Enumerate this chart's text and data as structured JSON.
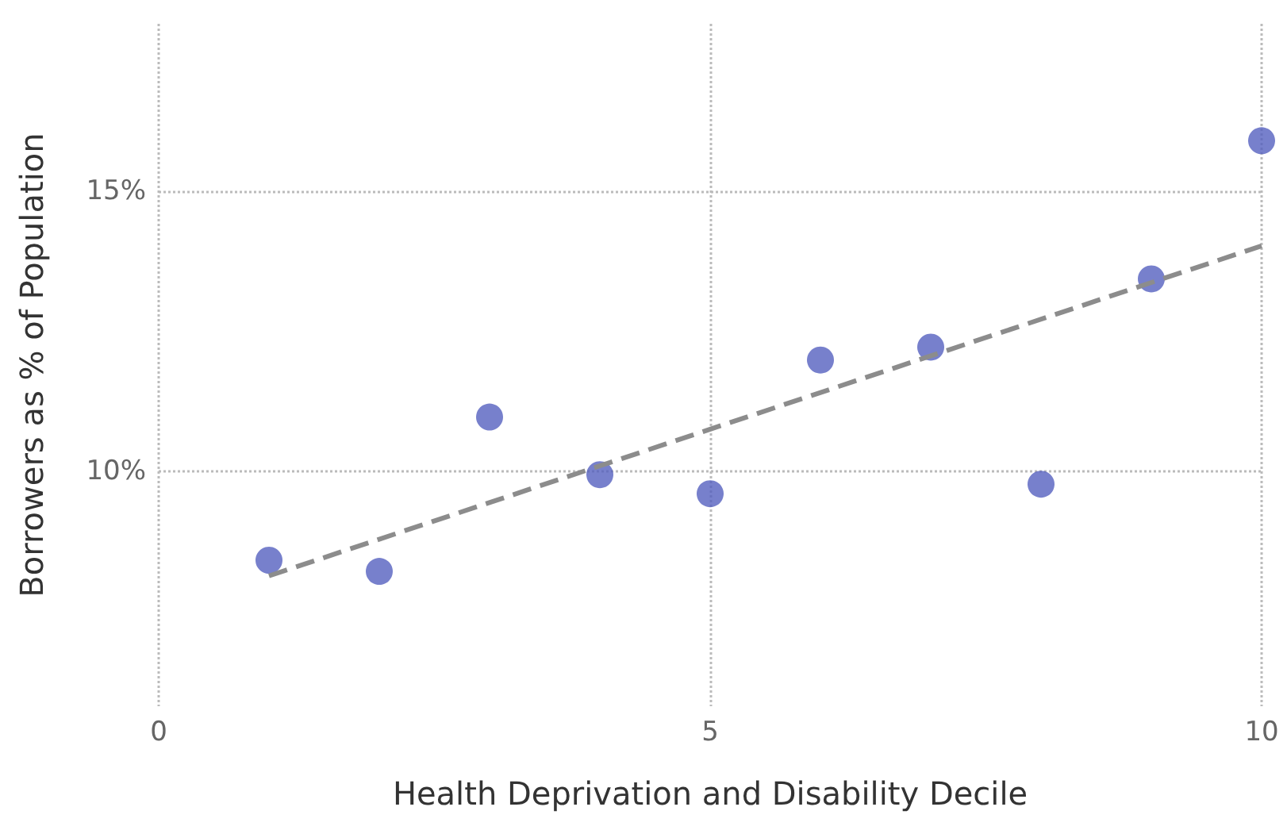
{
  "chart_data": {
    "type": "scatter",
    "xlabel": "Health Deprivation and Disability Decile",
    "ylabel": "Borrowers as % of Population",
    "xlim": [
      0,
      10
    ],
    "xticks": [
      0,
      5,
      10
    ],
    "ylim": [
      5.8,
      18
    ],
    "yticks": [
      {
        "value": 10,
        "label": "10%"
      },
      {
        "value": 15,
        "label": "15%"
      }
    ],
    "grid": true,
    "series": [
      {
        "color": "#5560bf",
        "marker": "circle",
        "x": [
          1,
          2,
          3,
          4,
          5,
          6,
          7,
          8,
          9,
          10
        ],
        "values": [
          8.41,
          8.21,
          10.97,
          9.94,
          9.6,
          11.99,
          12.22,
          9.77,
          13.44,
          15.91
        ]
      },
      {
        "type": "line",
        "color": "#8c8c8c",
        "marker": "none",
        "line_style": "dashed",
        "x": [
          1,
          10
        ],
        "values": [
          8.13,
          14.03
        ]
      }
    ]
  }
}
